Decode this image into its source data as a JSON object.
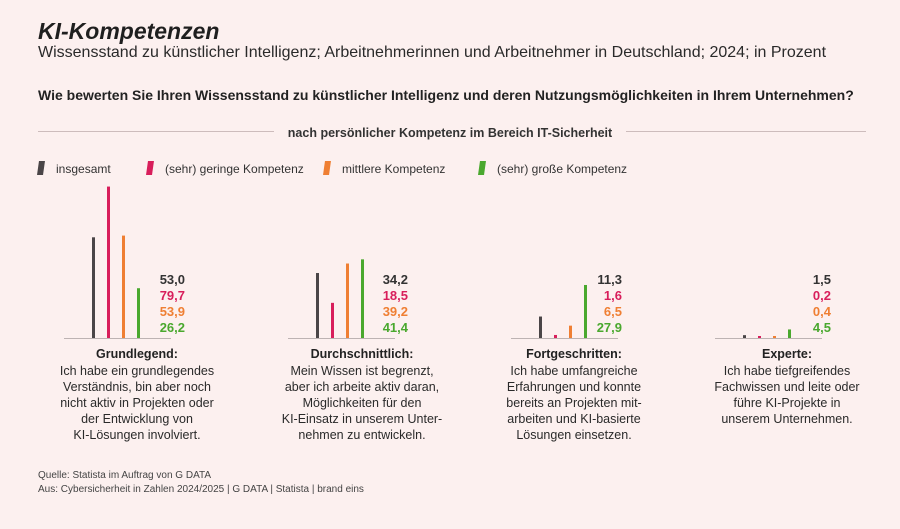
{
  "title": "KI-Kompetenzen",
  "subtitle": "Wissensstand zu künstlicher Intelligenz; Arbeitnehmerinnen und Arbeitnehmer in Deutschland; 2024; in Prozent",
  "question": "Wie bewerten Sie Ihren Wissensstand zu künstlicher Intelligenz und deren Nutzungsmöglichkeiten in Ihrem Unternehmen?",
  "section_label": "nach persönlicher Kompetenz im Bereich IT-Sicherheit",
  "legend": [
    {
      "label": "insgesamt",
      "color": "#4a4547"
    },
    {
      "label": "(sehr) geringe Kompetenz",
      "color": "#d81e5b"
    },
    {
      "label": "mittlere Kompetenz",
      "color": "#ef7f33"
    },
    {
      "label": "(sehr) große Kompetenz",
      "color": "#4aa82e"
    }
  ],
  "chart_data": {
    "type": "bar",
    "ylim": [
      0,
      80
    ],
    "categories": [
      "Grundlegend:",
      "Durchschnittlich:",
      "Fortgeschritten:",
      "Experte:"
    ],
    "series": [
      {
        "name": "insgesamt",
        "values": [
          53.0,
          34.2,
          11.3,
          1.5
        ],
        "labels": [
          "53,0",
          "34,2",
          "11,3",
          "1,5"
        ]
      },
      {
        "name": "(sehr) geringe Kompetenz",
        "values": [
          79.7,
          18.5,
          1.6,
          0.2
        ],
        "labels": [
          "79,7",
          "18,5",
          "1,6",
          "0,2"
        ]
      },
      {
        "name": "mittlere Kompetenz",
        "values": [
          53.9,
          39.2,
          6.5,
          0.4
        ],
        "labels": [
          "53,9",
          "39,2",
          "6,5",
          "0,4"
        ]
      },
      {
        "name": "(sehr) große Kompetenz",
        "values": [
          26.2,
          41.4,
          27.9,
          4.5
        ],
        "labels": [
          "26,2",
          "41,4",
          "27,9",
          "4,5"
        ]
      }
    ]
  },
  "descriptions": [
    "Ich habe ein grundlegendes\nVerständnis, bin aber noch\nnicht aktiv in Projekten oder\nder Entwicklung von\nKI-Lösungen involviert.",
    "Mein Wissen ist begrenzt,\naber ich arbeite aktiv daran,\nMöglichkeiten für den\nKI-Einsatz in unserem Unter-\nnehmen zu entwickeln.",
    "Ich habe umfangreiche\nErfahrungen und konnte\nbereits an Projekten mit-\narbeiten und KI-basierte\nLösungen einsetzen.",
    "Ich habe tiefgreifendes\nFachwissen und leite oder\nführe KI-Projekte in\nunserem Unternehmen."
  ],
  "source": {
    "line1": "Quelle: Statista im Auftrag von G DATA",
    "line2": "Aus: Cybersicherheit in Zahlen 2024/2025 | G DATA | Statista | brand eins"
  }
}
